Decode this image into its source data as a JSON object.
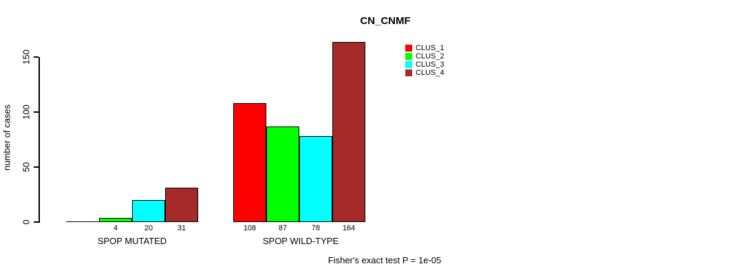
{
  "window": {
    "background": "#ffffff"
  },
  "chart_data": {
    "type": "bar",
    "title": "CN_CNMF",
    "ylabel": "number of cases",
    "xlabel": "",
    "yticks": [
      0,
      50,
      100,
      150
    ],
    "ylim": [
      0,
      170
    ],
    "grid": false,
    "categories": [
      "SPOP MUTATED",
      "SPOP WILD-TYPE"
    ],
    "series": [
      {
        "name": "CLUS_1",
        "color": "#FF0000",
        "values": [
          0,
          108
        ]
      },
      {
        "name": "CLUS_2",
        "color": "#00FF00",
        "values": [
          4,
          87
        ]
      },
      {
        "name": "CLUS_3",
        "color": "#00FFFF",
        "values": [
          20,
          78
        ]
      },
      {
        "name": "CLUS_4",
        "color": "#A52A2A",
        "values": [
          31,
          164
        ]
      }
    ],
    "bar_value_labels": {
      "show": true,
      "hide_zero": true
    },
    "legend": {
      "position": "top-right",
      "entries": [
        "CLUS_1",
        "CLUS_2",
        "CLUS_3",
        "CLUS_4"
      ]
    },
    "annotation": "Fisher's exact test P = 1e-05"
  }
}
